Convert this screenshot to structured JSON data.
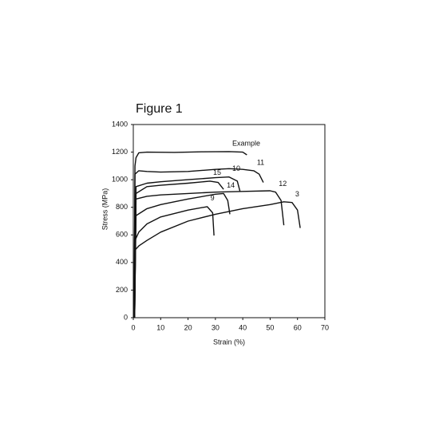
{
  "chart_data": {
    "type": "line",
    "title": "Figure 1",
    "x_label": "Strain (%)",
    "y_label": "Stress (MPa)",
    "xlim": [
      0,
      70
    ],
    "ylim": [
      0,
      1400
    ],
    "xticks": [
      0,
      10,
      20,
      30,
      40,
      50,
      60,
      70
    ],
    "yticks": [
      0,
      200,
      400,
      600,
      800,
      1000,
      1200,
      1400
    ],
    "grid": false,
    "series": [
      {
        "name": "Example",
        "color": "#111111",
        "x": [
          0.3,
          0.6,
          1,
          2,
          5,
          15,
          25,
          35,
          40,
          41.5
        ],
        "values": [
          0,
          1100,
          1160,
          1195,
          1200,
          1198,
          1202,
          1204,
          1200,
          1180
        ]
      },
      {
        "name": "11",
        "color": "#111111",
        "x": [
          0.3,
          0.6,
          2,
          5,
          10,
          20,
          30,
          35,
          40,
          44,
          46,
          47.5
        ],
        "values": [
          0,
          1040,
          1065,
          1060,
          1055,
          1060,
          1075,
          1080,
          1075,
          1065,
          1040,
          980
        ]
      },
      {
        "name": "10",
        "color": "#111111",
        "x": [
          0.5,
          1,
          5,
          10,
          20,
          30,
          35,
          38,
          39
        ],
        "values": [
          0,
          950,
          975,
          985,
          1000,
          1015,
          1020,
          990,
          915
        ]
      },
      {
        "name": "15",
        "color": "#111111",
        "x": [
          0.5,
          1,
          5,
          10,
          20,
          28,
          31,
          33
        ],
        "values": [
          0,
          900,
          950,
          960,
          975,
          990,
          980,
          930
        ]
      },
      {
        "name": "12",
        "color": "#111111",
        "x": [
          0.5,
          1,
          5,
          10,
          20,
          30,
          40,
          50,
          52,
          54,
          55
        ],
        "values": [
          0,
          860,
          880,
          890,
          900,
          910,
          915,
          920,
          910,
          850,
          670
        ]
      },
      {
        "name": "14",
        "color": "#111111",
        "x": [
          0.5,
          1,
          5,
          10,
          20,
          30,
          33,
          34.5,
          35.3
        ],
        "values": [
          0,
          740,
          790,
          820,
          860,
          895,
          900,
          850,
          750
        ]
      },
      {
        "name": "9",
        "color": "#111111",
        "x": [
          0.3,
          0.6,
          2,
          5,
          10,
          20,
          27,
          29,
          29.5
        ],
        "values": [
          0,
          560,
          620,
          680,
          730,
          780,
          805,
          760,
          595
        ]
      },
      {
        "name": "3",
        "color": "#111111",
        "x": [
          0.3,
          0.6,
          2,
          5,
          10,
          20,
          30,
          40,
          50,
          55,
          58,
          60,
          61
        ],
        "values": [
          0,
          490,
          520,
          560,
          620,
          700,
          750,
          790,
          820,
          840,
          835,
          780,
          650
        ]
      }
    ]
  }
}
